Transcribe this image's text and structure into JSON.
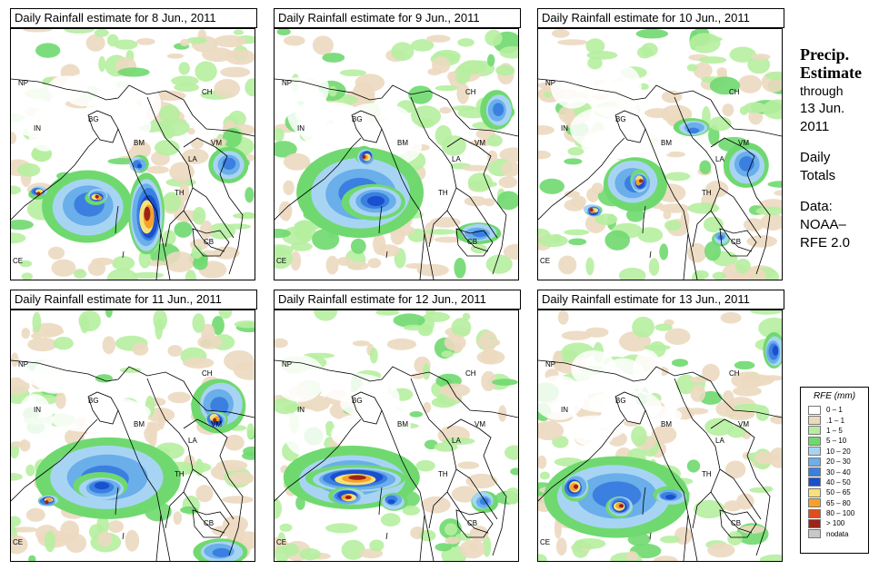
{
  "panels": [
    {
      "title": "Daily Rainfall estimate for  8 Jun., 2011"
    },
    {
      "title": "Daily Rainfall estimate for  9 Jun., 2011"
    },
    {
      "title": "Daily Rainfall estimate for  10 Jun., 2011"
    },
    {
      "title": "Daily Rainfall estimate for  11 Jun., 2011"
    },
    {
      "title": "Daily Rainfall estimate for  12 Jun., 2011"
    },
    {
      "title": "Daily Rainfall estimate for  13 Jun., 2011"
    }
  ],
  "map_labels": {
    "np": "NP",
    "in": "IN",
    "bg": "BG",
    "bm": "BM",
    "ch": "CH",
    "vm": "VM",
    "la": "LA",
    "th": "TH",
    "cb": "CB",
    "ce": "CE"
  },
  "side": {
    "heading_line1": "Precip.",
    "heading_line2": "Estimate",
    "through": "through",
    "date_line1": "13 Jun.",
    "date_line2": "2011",
    "daily_line1": "Daily",
    "daily_line2": "Totals",
    "data_line1": "Data:",
    "data_line2": "NOAA–",
    "data_line3": "RFE 2.0"
  },
  "legend": {
    "title": "RFE (mm)",
    "items": [
      {
        "label": "0 – 1",
        "color": "#ffffff"
      },
      {
        "label": ".1 – 1",
        "color": "#ecd9c0"
      },
      {
        "label": "1 – 5",
        "color": "#b6eea0"
      },
      {
        "label": "5 – 10",
        "color": "#6fd96f"
      },
      {
        "label": "10 – 20",
        "color": "#a8d4f4"
      },
      {
        "label": "20 – 30",
        "color": "#6aaeea"
      },
      {
        "label": "30 – 40",
        "color": "#3b7fe0"
      },
      {
        "label": "40 – 50",
        "color": "#1a4fcf"
      },
      {
        "label": "50 – 65",
        "color": "#f5e27a"
      },
      {
        "label": "65 – 80",
        "color": "#f7a12a"
      },
      {
        "label": "80 – 100",
        "color": "#e24d1b"
      },
      {
        "label": "> 100",
        "color": "#9c2317"
      },
      {
        "label": "nodata",
        "color": "#c8c8c8"
      }
    ]
  }
}
